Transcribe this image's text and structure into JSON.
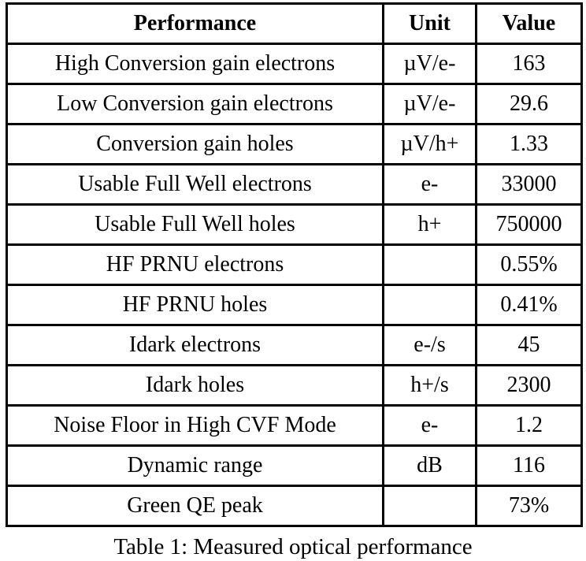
{
  "table": {
    "caption": "Table 1: Measured optical performance",
    "columns": {
      "performance": "Performance",
      "unit": "Unit",
      "value": "Value"
    },
    "rows": [
      {
        "performance": "High Conversion gain electrons",
        "unit": "µV/e-",
        "value": "163"
      },
      {
        "performance": "Low Conversion gain electrons",
        "unit": "µV/e-",
        "value": "29.6"
      },
      {
        "performance": "Conversion gain holes",
        "unit": "µV/h+",
        "value": "1.33"
      },
      {
        "performance": "Usable Full Well electrons",
        "unit": "e-",
        "value": "33000"
      },
      {
        "performance": "Usable Full Well holes",
        "unit": "h+",
        "value": "750000"
      },
      {
        "performance": "HF PRNU electrons",
        "unit": "",
        "value": "0.55%"
      },
      {
        "performance": "HF PRNU holes",
        "unit": "",
        "value": "0.41%"
      },
      {
        "performance": "Idark electrons",
        "unit": "e-/s",
        "value": "45"
      },
      {
        "performance": "Idark holes",
        "unit": "h+/s",
        "value": "2300"
      },
      {
        "performance": "Noise Floor in High CVF Mode",
        "unit": "e-",
        "value": "1.2"
      },
      {
        "performance": "Dynamic range",
        "unit": "dB",
        "value": "116"
      },
      {
        "performance": "Green QE peak",
        "unit": "",
        "value": "73%"
      }
    ]
  }
}
